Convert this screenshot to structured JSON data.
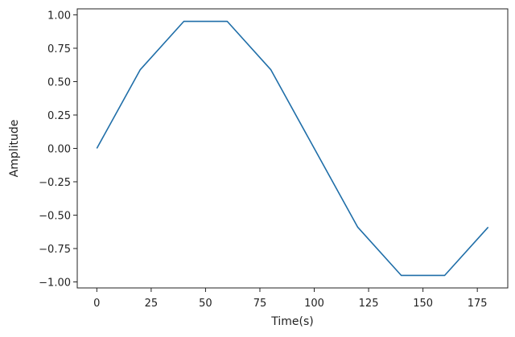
{
  "chart_data": {
    "type": "line",
    "title": "",
    "xlabel": "Time(s)",
    "ylabel": "Amplitude",
    "xlim": [
      -9,
      189
    ],
    "ylim": [
      -1.045,
      1.045
    ],
    "grid": false,
    "legend": "none",
    "x_ticks": [
      0,
      25,
      50,
      75,
      100,
      125,
      150,
      175
    ],
    "x_tick_labels": [
      "0",
      "25",
      "50",
      "75",
      "100",
      "125",
      "150",
      "175"
    ],
    "y_ticks": [
      1.0,
      0.75,
      0.5,
      0.25,
      0.0,
      -0.25,
      -0.5,
      -0.75,
      -1.0
    ],
    "y_tick_labels": [
      "1.00",
      "0.75",
      "0.50",
      "0.25",
      "0.00",
      "−0.25",
      "−0.50",
      "−0.75",
      "−1.00"
    ],
    "series": [
      {
        "color": "#1f6ea8",
        "x": [
          0,
          20,
          40,
          60,
          80,
          100,
          120,
          140,
          160,
          180
        ],
        "y": [
          0.0,
          0.59,
          0.951,
          0.951,
          0.59,
          0.0,
          -0.59,
          -0.951,
          -0.951,
          -0.59
        ]
      }
    ]
  }
}
